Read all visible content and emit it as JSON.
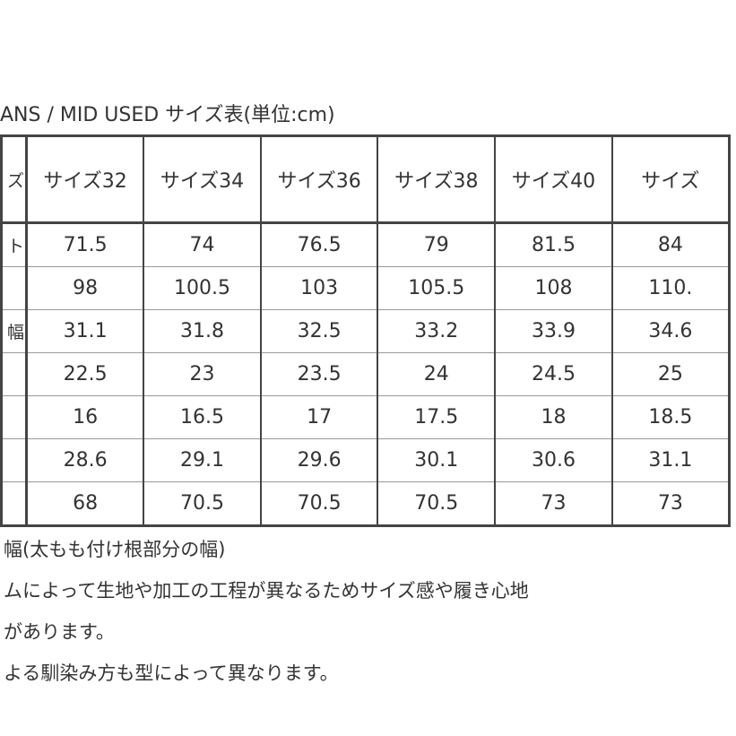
{
  "title": "ANS / MID USED サイズ表(単位:cm)",
  "table": {
    "header_label": "ズ",
    "columns": [
      "サイズ32",
      "サイズ34",
      "サイズ36",
      "サイズ38",
      "サイズ40",
      "サイズ"
    ],
    "rows": [
      {
        "label": "ト",
        "values": [
          "71.5",
          "74",
          "76.5",
          "79",
          "81.5",
          "84"
        ]
      },
      {
        "label": "",
        "values": [
          "98",
          "100.5",
          "103",
          "105.5",
          "108",
          "110."
        ]
      },
      {
        "label": "幅",
        "values": [
          "31.1",
          "31.8",
          "32.5",
          "33.2",
          "33.9",
          "34.6"
        ]
      },
      {
        "label": "",
        "values": [
          "22.5",
          "23",
          "23.5",
          "24",
          "24.5",
          "25"
        ]
      },
      {
        "label": "",
        "values": [
          "16",
          "16.5",
          "17",
          "17.5",
          "18",
          "18.5"
        ]
      },
      {
        "label": "",
        "values": [
          "28.6",
          "29.1",
          "29.6",
          "30.1",
          "30.6",
          "31.1"
        ]
      },
      {
        "label": "",
        "values": [
          "68",
          "70.5",
          "70.5",
          "70.5",
          "73",
          "73"
        ]
      }
    ]
  },
  "notes": [
    "幅(太もも付け根部分の幅)",
    "ムによって生地や加工の工程が異なるためサイズ感や履き心地",
    "があります。",
    "よる馴染み方も型によって異なります。"
  ]
}
